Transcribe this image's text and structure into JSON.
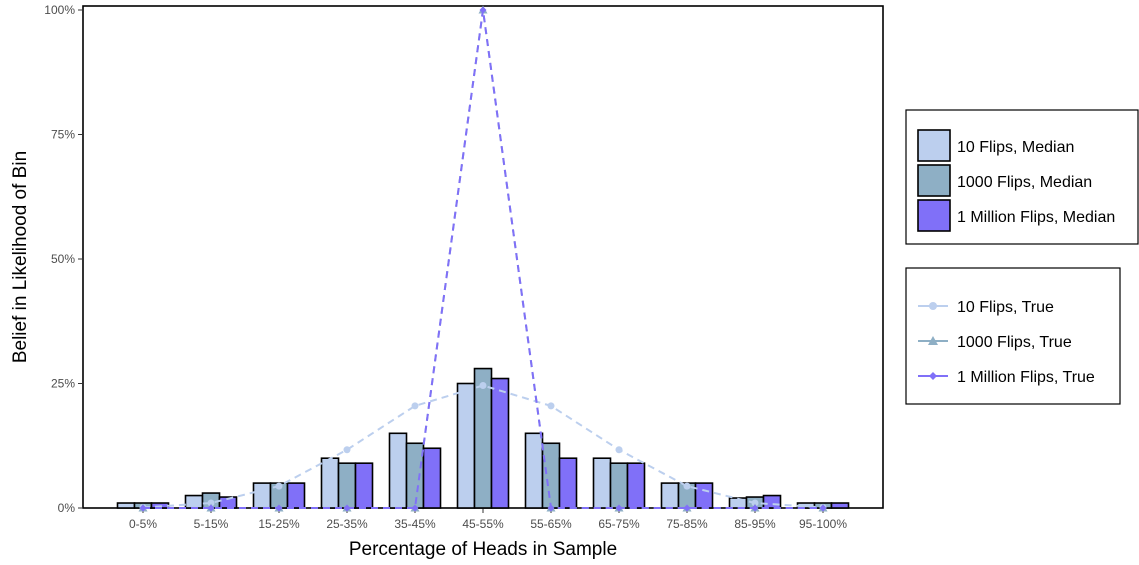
{
  "chart_data": {
    "type": "bar",
    "xlabel": "Percentage of Heads in Sample",
    "ylabel": "Belief in Likelihood of Bin",
    "ylim": [
      0,
      100
    ],
    "yticks": [
      0,
      25,
      50,
      75,
      100
    ],
    "ytick_labels": [
      "0%",
      "25%",
      "50%",
      "75%",
      "100%"
    ],
    "categories": [
      "0-5%",
      "5-15%",
      "15-25%",
      "25-35%",
      "35-45%",
      "45-55%",
      "55-65%",
      "65-75%",
      "75-85%",
      "85-95%",
      "95-100%"
    ],
    "series": [
      {
        "name": "10 Flips, Median",
        "kind": "bar",
        "color": "#bccfee",
        "values": [
          1,
          2.5,
          5,
          10,
          15,
          25,
          15,
          10,
          5,
          2,
          1
        ]
      },
      {
        "name": "1000 Flips, Median",
        "kind": "bar",
        "color": "#8eafc5",
        "values": [
          1,
          3,
          5,
          9,
          13,
          28,
          13,
          9,
          5,
          2.2,
          1
        ]
      },
      {
        "name": "1 Million Flips, Median",
        "kind": "bar",
        "color": "#8070f8",
        "values": [
          1,
          2.2,
          5,
          9,
          12,
          26,
          10,
          9,
          5,
          2.5,
          1
        ]
      }
    ],
    "true_series": [
      {
        "name": "10 Flips, True",
        "kind": "line",
        "marker": "circle",
        "color": "#bccfee",
        "values": [
          0.1,
          1,
          4.4,
          11.7,
          20.5,
          24.6,
          20.5,
          11.7,
          4.4,
          1,
          0.1
        ]
      },
      {
        "name": "1000 Flips, True",
        "kind": "line",
        "marker": "triangle",
        "color": "#8eafc5",
        "values": [
          0,
          0,
          0,
          0,
          0,
          100,
          0,
          0,
          0,
          0,
          0
        ]
      },
      {
        "name": "1 Million Flips, True",
        "kind": "line",
        "marker": "diamond",
        "color": "#8070f8",
        "values": [
          0,
          0,
          0,
          0,
          0,
          100,
          0,
          0,
          0,
          0,
          0
        ]
      }
    ],
    "legend_position": "right"
  }
}
